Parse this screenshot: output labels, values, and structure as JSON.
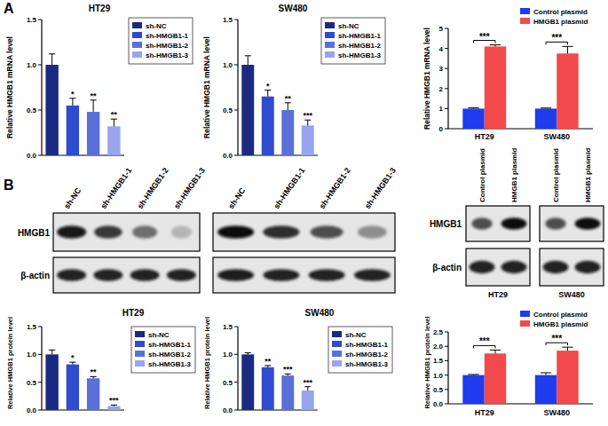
{
  "panel_labels": [
    "A",
    "B"
  ],
  "chart_data": [
    {
      "type": "bar",
      "title": "HT29",
      "y_label": "Relative HMGB1 mRNA level",
      "categories": [
        "sh-NC",
        "sh-HMGB1-1",
        "sh-HMGB1-2",
        "sh-HMGB1-3"
      ],
      "values": [
        1.0,
        0.55,
        0.48,
        0.32
      ],
      "errors": [
        0.12,
        0.08,
        0.13,
        0.08
      ],
      "annotations": [
        null,
        "*",
        "**",
        "**"
      ],
      "colors": [
        "#1a2a80",
        "#2f4bd0",
        "#5a70d8",
        "#98a4ee"
      ],
      "ylim": [
        0,
        1.5
      ],
      "yticks": [
        {
          "value": 0,
          "label": "0.0"
        },
        {
          "value": 0.5,
          "label": "0.5"
        },
        {
          "value": 1,
          "label": "1.0"
        },
        {
          "value": 1.5,
          "label": "1.5"
        }
      ],
      "tick_labels": "y",
      "legend": "right"
    },
    {
      "type": "bar",
      "title": "SW480",
      "y_label": "Relative HMGB1 mRNA level",
      "categories": [
        "sh-NC",
        "sh-HMGB1-1",
        "sh-HMGB1-2",
        "sh-HMGB1-3"
      ],
      "values": [
        1.0,
        0.65,
        0.5,
        0.33
      ],
      "errors": [
        0.1,
        0.07,
        0.08,
        0.06
      ],
      "annotations": [
        null,
        "*",
        "**",
        "***"
      ],
      "colors": [
        "#1a2a80",
        "#2f4bd0",
        "#5a70d8",
        "#98a4ee"
      ],
      "ylim": [
        0,
        1.5
      ],
      "yticks": [
        {
          "value": 0,
          "label": "0.0"
        },
        {
          "value": 0.5,
          "label": "0.5"
        },
        {
          "value": 1,
          "label": "1.0"
        },
        {
          "value": 1.5,
          "label": "1.5"
        }
      ],
      "tick_labels": "y",
      "legend": "right"
    },
    {
      "type": "bar",
      "y_label": "Relative HMGB1 mRNA level",
      "categories": [
        "HT29",
        "SW480"
      ],
      "series": [
        {
          "name": "Control plasmid",
          "color": "#1f3bf0",
          "values": [
            1.0,
            1.0
          ],
          "errors": [
            0.04,
            0.03
          ]
        },
        {
          "name": "HMGB1 plasmid",
          "color": "#f24a4a",
          "values": [
            4.1,
            3.75
          ],
          "errors": [
            0.08,
            0.35
          ]
        }
      ],
      "annotations": [
        "***",
        "***"
      ],
      "ylim": [
        0,
        5
      ],
      "yticks": [
        0,
        1,
        2,
        3,
        4,
        5
      ],
      "legend": "upper right"
    },
    {
      "type": "bar",
      "title": "HT29",
      "y_label": "Relative HMGB1 protein level",
      "categories": [
        "sh-NC",
        "sh-HMGB1-1",
        "sh-HMGB1-2",
        "sh-HMGB1-3"
      ],
      "values": [
        1.0,
        0.82,
        0.57,
        0.07
      ],
      "errors": [
        0.08,
        0.04,
        0.03,
        0.02
      ],
      "annotations": [
        null,
        "*",
        "**",
        "***"
      ],
      "colors": [
        "#1a2a80",
        "#2f4bd0",
        "#5a70d8",
        "#98a4ee"
      ],
      "ylim": [
        0,
        1.5
      ],
      "yticks": [
        {
          "value": 0,
          "label": "0.0"
        },
        {
          "value": 0.5,
          "label": "0.5"
        },
        {
          "value": 1,
          "label": "1.0"
        },
        {
          "value": 1.5,
          "label": "1.5"
        }
      ],
      "tick_labels": "y",
      "legend": "right"
    },
    {
      "type": "bar",
      "title": "SW480",
      "y_label": "Relative HMGB1 protein level",
      "categories": [
        "sh-NC",
        "sh-HMGB1-1",
        "sh-HMGB1-2",
        "sh-HMGB1-3"
      ],
      "values": [
        1.0,
        0.77,
        0.62,
        0.35
      ],
      "errors": [
        0.03,
        0.03,
        0.03,
        0.07
      ],
      "annotations": [
        null,
        "**",
        "***",
        "***"
      ],
      "colors": [
        "#1a2a80",
        "#2f4bd0",
        "#5a70d8",
        "#98a4ee"
      ],
      "ylim": [
        0,
        1.5
      ],
      "yticks": [
        {
          "value": 0,
          "label": "0.0"
        },
        {
          "value": 0.5,
          "label": "0.5"
        },
        {
          "value": 1,
          "label": "1.0"
        },
        {
          "value": 1.5,
          "label": "1.5"
        }
      ],
      "tick_labels": "y",
      "legend": "right"
    },
    {
      "type": "bar",
      "y_label": "Relative HMGB1 protein level",
      "categories": [
        "HT29",
        "SW480"
      ],
      "series": [
        {
          "name": "Control plasmid",
          "color": "#1f3bf0",
          "values": [
            1.0,
            1.0
          ],
          "errors": [
            0.02,
            0.08
          ]
        },
        {
          "name": "HMGB1 plasmid",
          "color": "#f24a4a",
          "values": [
            1.75,
            1.85
          ],
          "errors": [
            0.12,
            0.12
          ]
        }
      ],
      "annotations": [
        "***",
        "***"
      ],
      "ylim": [
        0,
        2.5
      ],
      "yticks": [
        {
          "value": 0,
          "label": "0.0"
        },
        {
          "value": 0.5,
          "label": "0.5"
        },
        {
          "value": 1,
          "label": "1.0"
        },
        {
          "value": 1.5,
          "label": "1.5"
        },
        {
          "value": 2,
          "label": "2.0"
        },
        {
          "value": 2.5,
          "label": "2.5"
        }
      ],
      "legend": "upper right"
    }
  ],
  "blots": [
    {
      "rows": [
        "HMGB1",
        "β-actin"
      ],
      "lanes": [
        "sh-NC",
        "sh-HMGB1-1",
        "sh-HMGB1-2",
        "sh-HMGB1-3"
      ]
    },
    {
      "lanes": [
        "sh-NC",
        "sh-HMGB1-1",
        "sh-HMGB1-2",
        "sh-HMGB1-3"
      ]
    },
    {
      "rows": [
        "HMGB1",
        "β-actin"
      ],
      "groups": [
        {
          "name": "HT29",
          "lanes": [
            "Control plasmid",
            "HMGB1 plasmid"
          ]
        },
        {
          "name": "SW480",
          "lanes": [
            "Control plasmid",
            "HMGB1 plasmid"
          ]
        }
      ]
    }
  ]
}
